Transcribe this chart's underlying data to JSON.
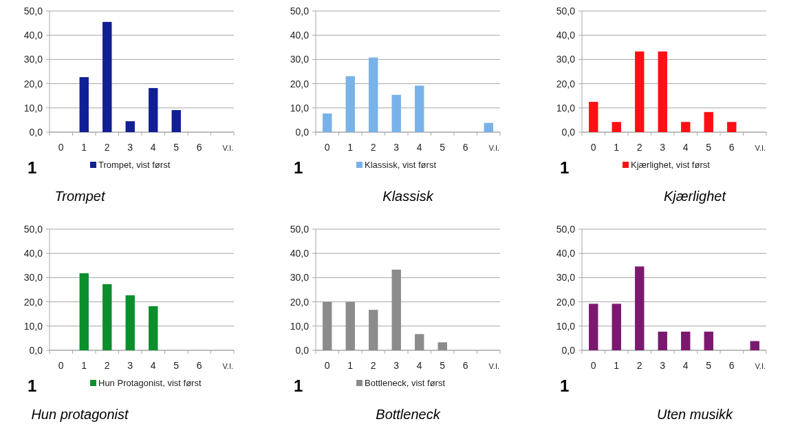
{
  "chart_data": [
    {
      "type": "bar",
      "title": "Trompet",
      "categories": [
        "0",
        "1",
        "2",
        "3",
        "4",
        "5",
        "6",
        "V.I."
      ],
      "series": [
        {
          "name": "Trompet, vist først",
          "color": "#111f95",
          "values": [
            0,
            22.7,
            45.5,
            4.5,
            18.2,
            9.1,
            0,
            0
          ]
        }
      ],
      "ylim": [
        0,
        50
      ],
      "yticks": [
        {
          "value": 0,
          "label": "0,0"
        },
        {
          "value": 10,
          "label": "10,0"
        },
        {
          "value": 20,
          "label": "20,0"
        },
        {
          "value": 30,
          "label": "30,0"
        },
        {
          "value": 40,
          "label": "40,0"
        },
        {
          "value": 50,
          "label": "50,0"
        }
      ],
      "grid": "y",
      "legend": "bottom",
      "annotations": [
        "1"
      ]
    },
    {
      "type": "bar",
      "title": "Klassisk",
      "categories": [
        "0",
        "1",
        "2",
        "3",
        "4",
        "5",
        "6",
        "V.I."
      ],
      "series": [
        {
          "name": "Klassisk, vist først",
          "color": "#79b2e8",
          "values": [
            7.7,
            23.1,
            30.8,
            15.4,
            19.2,
            0,
            0,
            3.8
          ]
        }
      ],
      "ylim": [
        0,
        50
      ],
      "yticks": [
        {
          "value": 0,
          "label": "0,0"
        },
        {
          "value": 10,
          "label": "10,0"
        },
        {
          "value": 20,
          "label": "20,0"
        },
        {
          "value": 30,
          "label": "30,0"
        },
        {
          "value": 40,
          "label": "40,0"
        },
        {
          "value": 50,
          "label": "50,0"
        }
      ],
      "grid": "y",
      "legend": "bottom",
      "annotations": [
        "1"
      ]
    },
    {
      "type": "bar",
      "title": "Kjærlighet",
      "categories": [
        "0",
        "1",
        "2",
        "3",
        "4",
        "5",
        "6",
        "V.I."
      ],
      "series": [
        {
          "name": "Kjærlighet, vist først",
          "color": "#ff1014",
          "values": [
            12.5,
            4.2,
            33.3,
            33.3,
            4.2,
            8.3,
            4.2,
            0
          ]
        }
      ],
      "ylim": [
        0,
        50
      ],
      "yticks": [
        {
          "value": 0,
          "label": "0,0"
        },
        {
          "value": 10,
          "label": "10,0"
        },
        {
          "value": 20,
          "label": "20,0"
        },
        {
          "value": 30,
          "label": "30,0"
        },
        {
          "value": 40,
          "label": "40,0"
        },
        {
          "value": 50,
          "label": "50,0"
        }
      ],
      "grid": "y",
      "legend": "bottom",
      "annotations": [
        "1"
      ]
    },
    {
      "type": "bar",
      "title": "Hun protagonist",
      "categories": [
        "0",
        "1",
        "2",
        "3",
        "4",
        "5",
        "6",
        "V.I."
      ],
      "series": [
        {
          "name": "Hun Protagonist, vist først",
          "color": "#0b8f2c",
          "values": [
            0,
            31.8,
            27.3,
            22.7,
            18.2,
            0,
            0,
            0
          ]
        }
      ],
      "ylim": [
        0,
        50
      ],
      "yticks": [
        {
          "value": 0,
          "label": "0,0"
        },
        {
          "value": 10,
          "label": "10,0"
        },
        {
          "value": 20,
          "label": "20,0"
        },
        {
          "value": 30,
          "label": "30,0"
        },
        {
          "value": 40,
          "label": "40,0"
        },
        {
          "value": 50,
          "label": "50,0"
        }
      ],
      "grid": "y",
      "legend": "bottom",
      "annotations": [
        "1"
      ]
    },
    {
      "type": "bar",
      "title": "Bottleneck",
      "categories": [
        "0",
        "1",
        "2",
        "3",
        "4",
        "5",
        "6",
        "V.I."
      ],
      "series": [
        {
          "name": "Bottleneck, vist først",
          "color": "#8c8c8c",
          "values": [
            20,
            20,
            16.7,
            33.3,
            6.7,
            3.3,
            0,
            0
          ]
        }
      ],
      "ylim": [
        0,
        50
      ],
      "yticks": [
        {
          "value": 0,
          "label": "0,0"
        },
        {
          "value": 10,
          "label": "10,0"
        },
        {
          "value": 20,
          "label": "20,0"
        },
        {
          "value": 30,
          "label": "30,0"
        },
        {
          "value": 40,
          "label": "40,0"
        },
        {
          "value": 50,
          "label": "50,0"
        }
      ],
      "grid": "y",
      "legend": "bottom",
      "annotations": [
        "1"
      ]
    },
    {
      "type": "bar",
      "title": "Uten musikk",
      "categories": [
        "0",
        "1",
        "2",
        "3",
        "4",
        "5",
        "6",
        "V.I."
      ],
      "series": [
        {
          "color": "#7b1970",
          "values": [
            19.2,
            19.2,
            34.6,
            7.7,
            7.7,
            7.7,
            0,
            3.8
          ]
        }
      ],
      "ylim": [
        0,
        50
      ],
      "yticks": [
        {
          "value": 0,
          "label": "0,0"
        },
        {
          "value": 10,
          "label": "10,0"
        },
        {
          "value": 20,
          "label": "20,0"
        },
        {
          "value": 30,
          "label": "30,0"
        },
        {
          "value": 40,
          "label": "40,0"
        },
        {
          "value": 50,
          "label": "50,0"
        }
      ],
      "grid": "y",
      "annotations": [
        "1"
      ]
    }
  ]
}
